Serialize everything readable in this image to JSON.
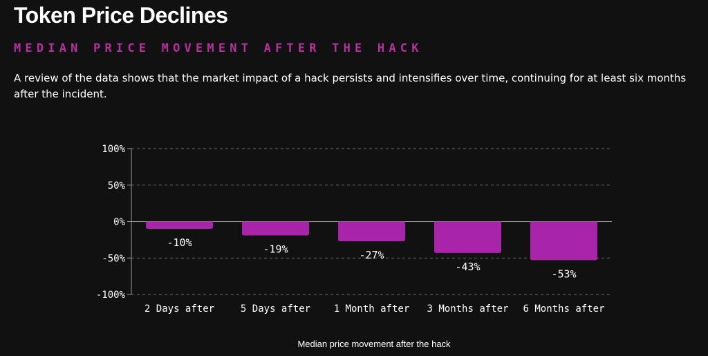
{
  "header": {
    "title": "Token Price Declines",
    "subtitle": "MEDIAN PRICE MOVEMENT AFTER THE HACK",
    "description": "A review of the data shows that the market impact of a hack persists and intensifies over time, continuing for at least six months after the incident."
  },
  "colors": {
    "bar": "#a824a8",
    "subtitle": "#b6309f",
    "background": "#121112",
    "grid": "#6b6b6b"
  },
  "chart_data": {
    "type": "bar",
    "categories": [
      "2 Days after",
      "5 Days after",
      "1 Month after",
      "3 Months after",
      "6 Months after"
    ],
    "values": [
      -10,
      -19,
      -27,
      -43,
      -53
    ],
    "value_labels": [
      "-10%",
      "-19%",
      "-27%",
      "-43%",
      "-53%"
    ],
    "xlabel": "Median price movement after the hack",
    "ylabel": "",
    "ylim": [
      -100,
      100
    ],
    "yticks": [
      100,
      50,
      0,
      -50,
      -100
    ],
    "ytick_labels": [
      "100%",
      "50%",
      "0%",
      "-50%",
      "-100%"
    ],
    "grid": true,
    "grid_style": "dashed horizontal"
  }
}
